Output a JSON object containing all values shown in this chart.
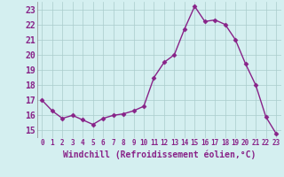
{
  "x": [
    0,
    1,
    2,
    3,
    4,
    5,
    6,
    7,
    8,
    9,
    10,
    11,
    12,
    13,
    14,
    15,
    16,
    17,
    18,
    19,
    20,
    21,
    22,
    23
  ],
  "y": [
    17.0,
    16.3,
    15.8,
    16.0,
    15.7,
    15.4,
    15.8,
    16.0,
    16.1,
    16.3,
    16.6,
    18.5,
    19.5,
    20.0,
    21.7,
    23.2,
    22.2,
    22.3,
    22.0,
    21.0,
    19.4,
    18.0,
    15.9,
    14.8
  ],
  "line_color": "#882288",
  "marker": "D",
  "markersize": 2.5,
  "linewidth": 1.0,
  "bg_color": "#d4eff0",
  "grid_color": "#aacccc",
  "xlabel": "Windchill (Refroidissement éolien,°C)",
  "xlabel_fontsize": 7,
  "ytick_fontsize": 7,
  "xtick_fontsize": 5.5,
  "ylim": [
    14.5,
    23.5
  ],
  "xlim": [
    -0.5,
    23.5
  ],
  "yticks": [
    15,
    16,
    17,
    18,
    19,
    20,
    21,
    22,
    23
  ],
  "xticks": [
    0,
    1,
    2,
    3,
    4,
    5,
    6,
    7,
    8,
    9,
    10,
    11,
    12,
    13,
    14,
    15,
    16,
    17,
    18,
    19,
    20,
    21,
    22,
    23
  ]
}
